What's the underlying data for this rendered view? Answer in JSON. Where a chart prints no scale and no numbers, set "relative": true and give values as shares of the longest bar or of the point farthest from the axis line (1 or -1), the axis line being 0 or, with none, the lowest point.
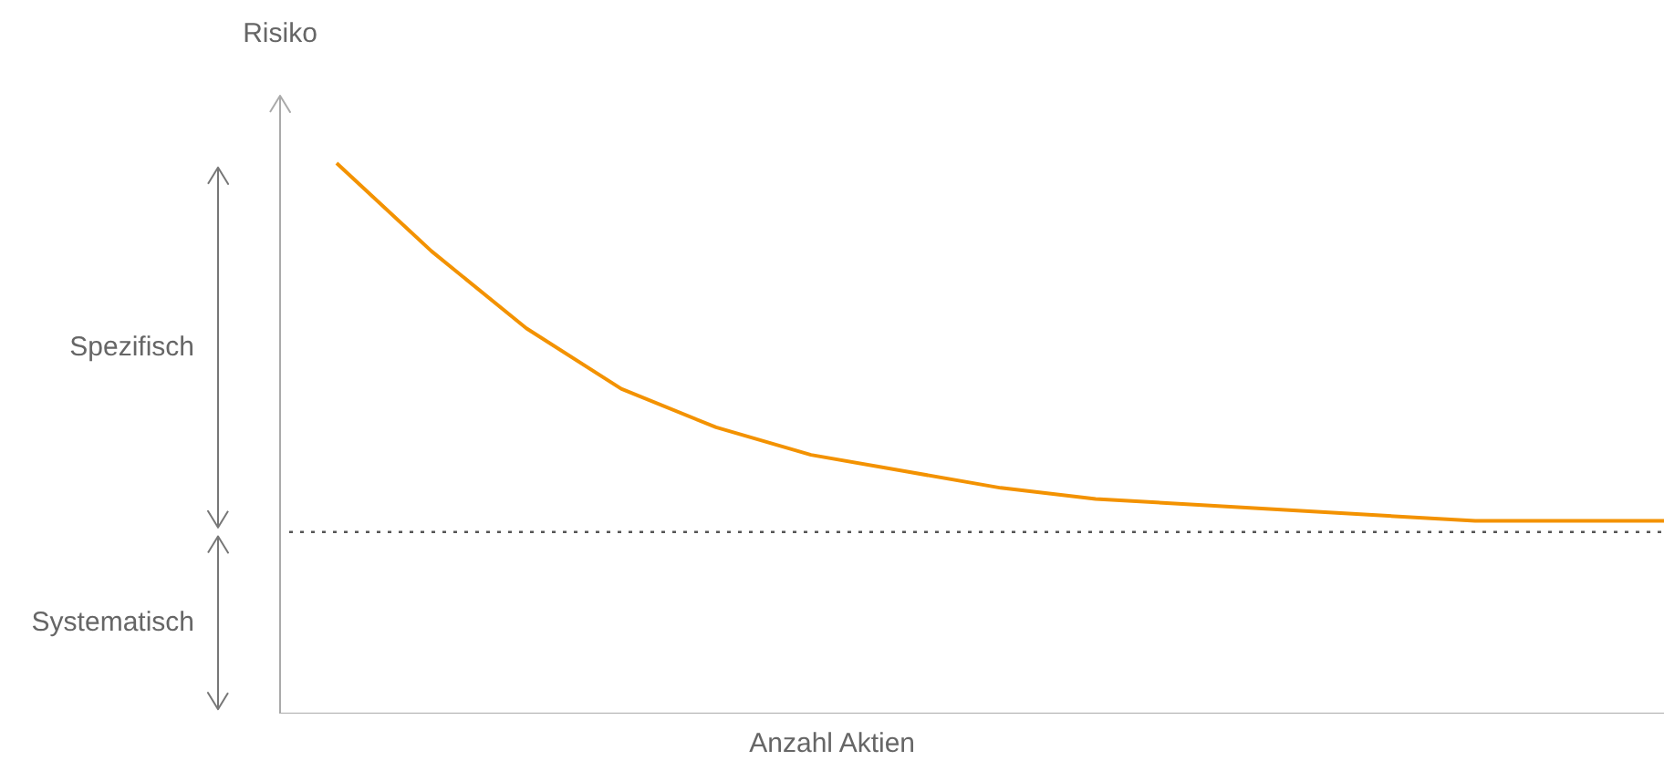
{
  "chart_data": {
    "type": "line",
    "relative": true,
    "xlabel": "Anzahl Aktien",
    "ylabel": "Risiko",
    "categories": [
      null,
      null,
      null,
      null,
      null,
      null,
      null,
      null,
      null,
      null,
      null,
      null,
      null,
      null,
      null
    ],
    "series": [
      {
        "color": "#f39200",
        "values": [
          1.0,
          0.84,
          0.7,
          0.59,
          0.52,
          0.47,
          0.44,
          0.41,
          0.39,
          0.38,
          0.37,
          0.36,
          0.35,
          0.35,
          0.35
        ]
      }
    ],
    "ref_lines": [
      {
        "axis": "y",
        "value": 0.33,
        "label": null,
        "color": "#555555",
        "line_style": "dotted"
      }
    ],
    "annotations": [
      "Spezifisch",
      "Systematisch"
    ]
  }
}
